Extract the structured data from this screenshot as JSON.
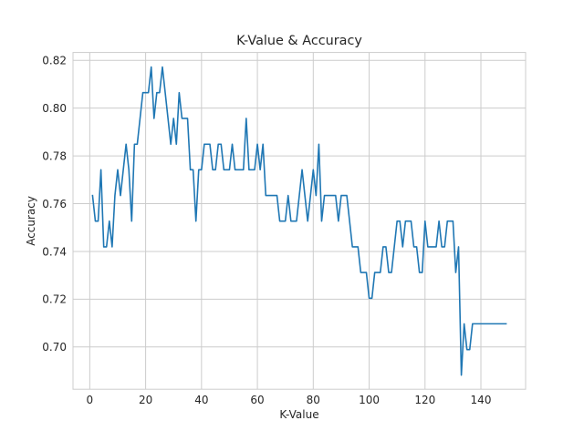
{
  "chart_data": {
    "type": "line",
    "title": "K-Value & Accuracy",
    "xlabel": "K-Value",
    "ylabel": "Accuracy",
    "xlim": [
      -6,
      156
    ],
    "ylim": [
      0.6823,
      0.8233
    ],
    "xticks": [
      0,
      20,
      40,
      60,
      80,
      100,
      120,
      140
    ],
    "yticks": [
      0.7,
      0.72,
      0.74,
      0.76,
      0.78,
      0.8,
      0.82
    ],
    "grid": true,
    "line_color": "#1f77b4",
    "series": [
      {
        "x": [
          1,
          2,
          3,
          4,
          5,
          6,
          7,
          8,
          9,
          10,
          11,
          12,
          13,
          14,
          15,
          16,
          17,
          18,
          19,
          20,
          21,
          22,
          23,
          24,
          25,
          26,
          27,
          28,
          29,
          30,
          31,
          32,
          33,
          34,
          35,
          36,
          37,
          38,
          39,
          40,
          41,
          42,
          43,
          44,
          45,
          46,
          47,
          48,
          49,
          50,
          51,
          52,
          53,
          54,
          55,
          56,
          57,
          58,
          59,
          60,
          61,
          62,
          63,
          64,
          65,
          66,
          67,
          68,
          69,
          70,
          71,
          72,
          73,
          74,
          75,
          76,
          77,
          78,
          79,
          80,
          81,
          82,
          83,
          84,
          85,
          86,
          87,
          88,
          89,
          90,
          91,
          92,
          93,
          94,
          95,
          96,
          97,
          98,
          99,
          100,
          101,
          102,
          103,
          104,
          105,
          106,
          107,
          108,
          109,
          110,
          111,
          112,
          113,
          114,
          115,
          116,
          117,
          118,
          119,
          120,
          121,
          122,
          123,
          124,
          125,
          126,
          127,
          128,
          129,
          130,
          131,
          132,
          133,
          134,
          135,
          136,
          137,
          138,
          139,
          140,
          141,
          142,
          143,
          144,
          145,
          146,
          147,
          148,
          149
        ],
        "y": [
          0.7634,
          0.7527,
          0.7527,
          0.7742,
          0.7419,
          0.7419,
          0.7527,
          0.7419,
          0.7634,
          0.7742,
          0.7634,
          0.7742,
          0.7849,
          0.7742,
          0.7527,
          0.7849,
          0.7849,
          0.7957,
          0.8065,
          0.8065,
          0.8065,
          0.8172,
          0.7957,
          0.8065,
          0.8065,
          0.8172,
          0.8065,
          0.7957,
          0.7849,
          0.7957,
          0.7849,
          0.8065,
          0.7957,
          0.7957,
          0.7957,
          0.7742,
          0.7742,
          0.7527,
          0.7742,
          0.7742,
          0.7849,
          0.7849,
          0.7849,
          0.7742,
          0.7742,
          0.7849,
          0.7849,
          0.7742,
          0.7742,
          0.7742,
          0.7849,
          0.7742,
          0.7742,
          0.7742,
          0.7742,
          0.7957,
          0.7742,
          0.7742,
          0.7742,
          0.7849,
          0.7742,
          0.7849,
          0.7634,
          0.7634,
          0.7634,
          0.7634,
          0.7634,
          0.7527,
          0.7527,
          0.7527,
          0.7634,
          0.7527,
          0.7527,
          0.7527,
          0.7634,
          0.7742,
          0.7634,
          0.7527,
          0.7634,
          0.7742,
          0.7634,
          0.7849,
          0.7527,
          0.7634,
          0.7634,
          0.7634,
          0.7634,
          0.7634,
          0.7527,
          0.7634,
          0.7634,
          0.7634,
          0.7527,
          0.7419,
          0.7419,
          0.7419,
          0.7312,
          0.7312,
          0.7312,
          0.7204,
          0.7204,
          0.7312,
          0.7312,
          0.7312,
          0.7419,
          0.7419,
          0.7312,
          0.7312,
          0.7419,
          0.7527,
          0.7527,
          0.7419,
          0.7527,
          0.7527,
          0.7527,
          0.7419,
          0.7419,
          0.7312,
          0.7312,
          0.7527,
          0.7419,
          0.7419,
          0.7419,
          0.7419,
          0.7527,
          0.7419,
          0.7419,
          0.7527,
          0.7527,
          0.7527,
          0.7312,
          0.7419,
          0.6882,
          0.7097,
          0.6989,
          0.6989,
          0.7097,
          0.7097,
          0.7097,
          0.7097,
          0.7097,
          0.7097,
          0.7097,
          0.7097,
          0.7097,
          0.7097,
          0.7097,
          0.7097,
          0.7097
        ]
      }
    ]
  }
}
